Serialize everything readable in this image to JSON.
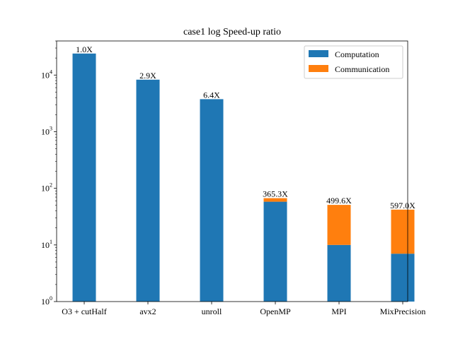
{
  "chart_data": {
    "type": "bar",
    "stacked": true,
    "title": "case1 log Speed-up ratio",
    "xlabel": "",
    "ylabel": "",
    "yscale": "log",
    "ylim": [
      1,
      40000
    ],
    "y_ticks": [
      {
        "value": 1,
        "base": "10",
        "exp": "0"
      },
      {
        "value": 10,
        "base": "10",
        "exp": "1"
      },
      {
        "value": 100,
        "base": "10",
        "exp": "2"
      },
      {
        "value": 1000,
        "base": "10",
        "exp": "3"
      },
      {
        "value": 10000,
        "base": "10",
        "exp": "4"
      }
    ],
    "grid": false,
    "legend_position": "top-right",
    "categories": [
      "O3 + cutHalf",
      "avx2",
      "unroll",
      "OpenMP",
      "MPI",
      "MixPrecision"
    ],
    "series": [
      {
        "name": "Computation",
        "color": "#1f77b4",
        "values": [
          24000,
          8300,
          3750,
          57,
          9,
          6
        ]
      },
      {
        "name": "Communication",
        "color": "#ff7f0e",
        "values": [
          0,
          0,
          0,
          9,
          41,
          35
        ]
      }
    ],
    "bar_labels": [
      "1.0X",
      "2.9X",
      "6.4X",
      "365.3X",
      "499.6X",
      "597.0X"
    ]
  }
}
